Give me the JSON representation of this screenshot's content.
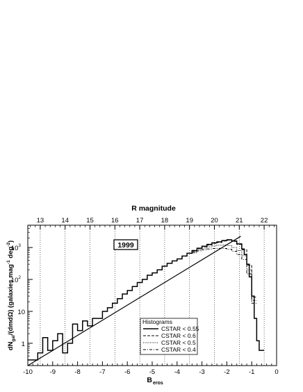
{
  "chart_data": {
    "type": "line",
    "top_axis_title": "R magnitude",
    "x_axis_title": "B",
    "x_axis_title_sub": "eros",
    "y_axis_title": "dN",
    "y_axis_title_sub": "gal",
    "y_axis_title_rest": "/(dmdΩ) (galaxies mag",
    "y_axis_title_exp1": "-1",
    "y_axis_title_deg": " deg",
    "y_axis_title_exp2": "-2",
    "y_axis_title_close": ")",
    "annotation": "1999",
    "xlim": [
      -10,
      0
    ],
    "ylim": [
      0.2,
      5000
    ],
    "y_scale": "log",
    "x_ticks": [
      "-10",
      "-9",
      "-8",
      "-7",
      "-6",
      "-5",
      "-4",
      "-3",
      "-2",
      "-1",
      "0"
    ],
    "x_tick_values": [
      -10,
      -9,
      -8,
      -7,
      -6,
      -5,
      -4,
      -3,
      -2,
      -1,
      0
    ],
    "top_ticks": [
      "13",
      "14",
      "15",
      "16",
      "17",
      "18",
      "19",
      "20",
      "21",
      "22"
    ],
    "top_tick_positions": [
      -9.5,
      -8.5,
      -7.5,
      -6.5,
      -5.5,
      -4.5,
      -3.5,
      -2.5,
      -1.5,
      -0.5
    ],
    "y_ticks": [
      {
        "value": 1,
        "base": "1",
        "exp": ""
      },
      {
        "value": 10,
        "base": "10",
        "exp": ""
      },
      {
        "value": 100,
        "base": "10",
        "exp": "2"
      },
      {
        "value": 1000,
        "base": "10",
        "exp": "3"
      }
    ],
    "vertical_grid_x": [
      -9.5,
      -8.5,
      -7.5,
      -6.5,
      -5.5,
      -4.5,
      -3.5,
      -2.5,
      -1.5,
      -0.5
    ],
    "grid": "dotted vertical lines at R magnitude ticks",
    "fit_line": {
      "x": [
        -10.0,
        -1.44
      ],
      "y": [
        0.17,
        2250
      ]
    },
    "legend": {
      "title": "Histograms",
      "placement": "bottom-center",
      "entries": [
        "CSTAR < 0.55",
        "CSTAR < 0.6",
        "CSTAR < 0.5",
        "CSTAR < 0.4"
      ]
    },
    "series": [
      {
        "name": "CSTAR < 0.55",
        "style": "solid",
        "x": [
          -10.0,
          -9.6,
          -9.4,
          -9.2,
          -9.0,
          -8.8,
          -8.6,
          -8.4,
          -8.2,
          -8.0,
          -7.8,
          -7.6,
          -7.4,
          -7.2,
          -7.0,
          -6.8,
          -6.6,
          -6.4,
          -6.2,
          -6.0,
          -5.8,
          -5.6,
          -5.4,
          -5.2,
          -5.0,
          -4.8,
          -4.6,
          -4.4,
          -4.2,
          -4.0,
          -3.8,
          -3.6,
          -3.4,
          -3.2,
          -3.0,
          -2.8,
          -2.6,
          -2.4,
          -2.2,
          -2.0,
          -1.8,
          -1.6,
          -1.4,
          -1.3,
          -1.2,
          -1.1,
          -1.0,
          -0.9,
          -0.8,
          -0.7
        ],
        "y": [
          0.3,
          0.5,
          1.5,
          0.6,
          1.2,
          2.0,
          0.5,
          1.0,
          4.0,
          2.5,
          5.0,
          3.5,
          6.0,
          6.0,
          10,
          13,
          18,
          25,
          35,
          45,
          60,
          80,
          100,
          135,
          160,
          200,
          260,
          320,
          380,
          440,
          540,
          660,
          800,
          950,
          1100,
          1250,
          1400,
          1500,
          1650,
          1750,
          1600,
          1300,
          900,
          600,
          300,
          120,
          30,
          6,
          1.2,
          0.6
        ]
      },
      {
        "name": "CSTAR < 0.6",
        "style": "dashed",
        "x": [
          -3.4,
          -3.2,
          -3.0,
          -2.8,
          -2.6,
          -2.4,
          -2.2,
          -2.0,
          -1.8,
          -1.6,
          -1.4,
          -1.2,
          -1.0
        ],
        "y": [
          760,
          920,
          1060,
          1200,
          1350,
          1450,
          1600,
          1700,
          1560,
          1250,
          850,
          280,
          28
        ]
      },
      {
        "name": "CSTAR < 0.5",
        "style": "dotted",
        "x": [
          -3.4,
          -3.2,
          -3.0,
          -2.8,
          -2.6,
          -2.4,
          -2.2,
          -2.0,
          -1.8,
          -1.6,
          -1.4,
          -1.2,
          -1.0
        ],
        "y": [
          720,
          850,
          950,
          1050,
          1120,
          1180,
          1200,
          1150,
          1000,
          800,
          550,
          200,
          22
        ]
      },
      {
        "name": "CSTAR < 0.4",
        "style": "dashdot",
        "x": [
          -3.4,
          -3.2,
          -3.0,
          -2.8,
          -2.6,
          -2.4,
          -2.2,
          -2.0,
          -1.8,
          -1.6,
          -1.4,
          -1.2,
          -1.0
        ],
        "y": [
          680,
          780,
          850,
          900,
          930,
          940,
          930,
          880,
          760,
          600,
          420,
          150,
          18
        ]
      }
    ]
  }
}
